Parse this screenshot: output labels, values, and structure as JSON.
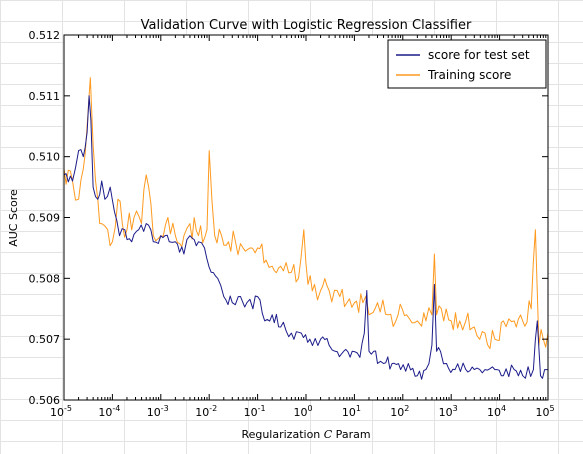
{
  "chart_data": {
    "type": "line",
    "title": "Validation Curve with Logistic Regression Classifier",
    "xlabel_prefix": "Regularization ",
    "xlabel_var": "C",
    "xlabel_suffix": " Param",
    "ylabel": "AUC Score",
    "xscale": "log",
    "xlim": [
      1e-05,
      100000
    ],
    "ylim": [
      0.506,
      0.512
    ],
    "grid": false,
    "legend_position": "top-right",
    "x_ticks": [
      {
        "value": 1e-05,
        "base": "10",
        "exp": "-5"
      },
      {
        "value": 0.0001,
        "base": "10",
        "exp": "-4"
      },
      {
        "value": 0.001,
        "base": "10",
        "exp": "-3"
      },
      {
        "value": 0.01,
        "base": "10",
        "exp": "-2"
      },
      {
        "value": 0.1,
        "base": "10",
        "exp": "-1"
      },
      {
        "value": 1,
        "base": "10",
        "exp": "0"
      },
      {
        "value": 10,
        "base": "10",
        "exp": "1"
      },
      {
        "value": 100,
        "base": "10",
        "exp": "2"
      },
      {
        "value": 1000,
        "base": "10",
        "exp": "3"
      },
      {
        "value": 10000,
        "base": "10",
        "exp": "4"
      },
      {
        "value": 100000,
        "base": "10",
        "exp": "5"
      }
    ],
    "y_ticks": [
      {
        "value": 0.506,
        "label": "0.506"
      },
      {
        "value": 0.507,
        "label": "0.507"
      },
      {
        "value": 0.508,
        "label": "0.508"
      },
      {
        "value": 0.509,
        "label": "0.509"
      },
      {
        "value": 0.51,
        "label": "0.510"
      },
      {
        "value": 0.511,
        "label": "0.511"
      },
      {
        "value": 0.512,
        "label": "0.512"
      }
    ],
    "series": [
      {
        "name": "score for test set",
        "color": "#1c1c8a",
        "anchor_points": [
          [
            1e-05,
            0.5097
          ],
          [
            1.5e-05,
            0.5096
          ],
          [
            2e-05,
            0.5101
          ],
          [
            2.5e-05,
            0.51
          ],
          [
            3e-05,
            0.5104
          ],
          [
            3.3e-05,
            0.511
          ],
          [
            3.6e-05,
            0.5106
          ],
          [
            4e-05,
            0.5095
          ],
          [
            5e-05,
            0.5093
          ],
          [
            6e-05,
            0.5096
          ],
          [
            7e-05,
            0.5093
          ],
          [
            9e-05,
            0.5095
          ],
          [
            0.00011,
            0.5091
          ],
          [
            0.00014,
            0.5087
          ],
          [
            0.00018,
            0.5088
          ],
          [
            0.00025,
            0.5086
          ],
          [
            0.00035,
            0.5088
          ],
          [
            0.0005,
            0.5089
          ],
          [
            0.0007,
            0.5086
          ],
          [
            0.001,
            0.5087
          ],
          [
            0.0015,
            0.5086
          ],
          [
            0.002,
            0.5086
          ],
          [
            0.003,
            0.5084
          ],
          [
            0.004,
            0.5087
          ],
          [
            0.006,
            0.5086
          ],
          [
            0.008,
            0.5085
          ],
          [
            0.011,
            0.5081
          ],
          [
            0.015,
            0.508
          ],
          [
            0.02,
            0.5077
          ],
          [
            0.03,
            0.5076
          ],
          [
            0.04,
            0.5077
          ],
          [
            0.06,
            0.5076
          ],
          [
            0.08,
            0.5075
          ],
          [
            0.1,
            0.5077
          ],
          [
            0.14,
            0.5073
          ],
          [
            0.2,
            0.5074
          ],
          [
            0.3,
            0.5072
          ],
          [
            0.5,
            0.5071
          ],
          [
            0.8,
            0.5071
          ],
          [
            1.2,
            0.507
          ],
          [
            2,
            0.507
          ],
          [
            3,
            0.5069
          ],
          [
            4,
            0.5068
          ],
          [
            6,
            0.5068
          ],
          [
            9,
            0.5068
          ],
          [
            13,
            0.5067
          ],
          [
            16,
            0.5071
          ],
          [
            18,
            0.5078
          ],
          [
            20,
            0.5068
          ],
          [
            25,
            0.5068
          ],
          [
            30,
            0.5066
          ],
          [
            40,
            0.5066
          ],
          [
            60,
            0.5066
          ],
          [
            90,
            0.5065
          ],
          [
            130,
            0.5066
          ],
          [
            200,
            0.5064
          ],
          [
            300,
            0.5065
          ],
          [
            400,
            0.5069
          ],
          [
            450,
            0.5079
          ],
          [
            500,
            0.5068
          ],
          [
            600,
            0.5068
          ],
          [
            800,
            0.5066
          ],
          [
            1200,
            0.5065
          ],
          [
            2000,
            0.5065
          ],
          [
            3000,
            0.5065
          ],
          [
            5000,
            0.5065
          ],
          [
            8000,
            0.5065
          ],
          [
            12000,
            0.5064
          ],
          [
            20000,
            0.5065
          ],
          [
            30000,
            0.5064
          ],
          [
            50000,
            0.5065
          ],
          [
            60000,
            0.5073
          ],
          [
            70000,
            0.5064
          ],
          [
            85000,
            0.5065
          ],
          [
            100000,
            0.5065
          ]
        ]
      },
      {
        "name": "Training score",
        "color": "#ff9a1f",
        "anchor_points": [
          [
            1e-05,
            0.5098
          ],
          [
            1.5e-05,
            0.5096
          ],
          [
            2e-05,
            0.5093
          ],
          [
            2.5e-05,
            0.5098
          ],
          [
            3e-05,
            0.5105
          ],
          [
            3.5e-05,
            0.5113
          ],
          [
            4e-05,
            0.5102
          ],
          [
            5e-05,
            0.5093
          ],
          [
            6e-05,
            0.5089
          ],
          [
            8e-05,
            0.5088
          ],
          [
            0.0001,
            0.5086
          ],
          [
            0.00013,
            0.5093
          ],
          [
            0.00016,
            0.5089
          ],
          [
            0.0002,
            0.5088
          ],
          [
            0.00028,
            0.509
          ],
          [
            0.0004,
            0.5089
          ],
          [
            0.0005,
            0.5097
          ],
          [
            0.0007,
            0.5087
          ],
          [
            0.001,
            0.5087
          ],
          [
            0.0014,
            0.509
          ],
          [
            0.002,
            0.5087
          ],
          [
            0.003,
            0.5087
          ],
          [
            0.004,
            0.5089
          ],
          [
            0.006,
            0.5087
          ],
          [
            0.009,
            0.5088
          ],
          [
            0.01,
            0.5101
          ],
          [
            0.013,
            0.5087
          ],
          [
            0.018,
            0.5087
          ],
          [
            0.025,
            0.5086
          ],
          [
            0.035,
            0.5086
          ],
          [
            0.05,
            0.5085
          ],
          [
            0.07,
            0.5085
          ],
          [
            0.1,
            0.5085
          ],
          [
            0.15,
            0.5083
          ],
          [
            0.2,
            0.5082
          ],
          [
            0.3,
            0.5082
          ],
          [
            0.5,
            0.5081
          ],
          [
            0.7,
            0.508
          ],
          [
            0.9,
            0.5088
          ],
          [
            1.1,
            0.5079
          ],
          [
            1.5,
            0.5079
          ],
          [
            2,
            0.5078
          ],
          [
            3,
            0.5078
          ],
          [
            5,
            0.5077
          ],
          [
            7,
            0.5076
          ],
          [
            10,
            0.5076
          ],
          [
            15,
            0.5076
          ],
          [
            20,
            0.5074
          ],
          [
            30,
            0.5076
          ],
          [
            50,
            0.5074
          ],
          [
            80,
            0.5074
          ],
          [
            120,
            0.5074
          ],
          [
            200,
            0.5073
          ],
          [
            300,
            0.5073
          ],
          [
            400,
            0.5074
          ],
          [
            450,
            0.5084
          ],
          [
            500,
            0.5074
          ],
          [
            700,
            0.5073
          ],
          [
            1000,
            0.5073
          ],
          [
            1500,
            0.5073
          ],
          [
            2000,
            0.5073
          ],
          [
            3000,
            0.5072
          ],
          [
            5000,
            0.5071
          ],
          [
            8000,
            0.507
          ],
          [
            12000,
            0.5073
          ],
          [
            20000,
            0.5073
          ],
          [
            30000,
            0.5073
          ],
          [
            45000,
            0.5075
          ],
          [
            55000,
            0.5088
          ],
          [
            65000,
            0.5069
          ],
          [
            80000,
            0.507
          ],
          [
            100000,
            0.5071
          ]
        ]
      }
    ]
  }
}
